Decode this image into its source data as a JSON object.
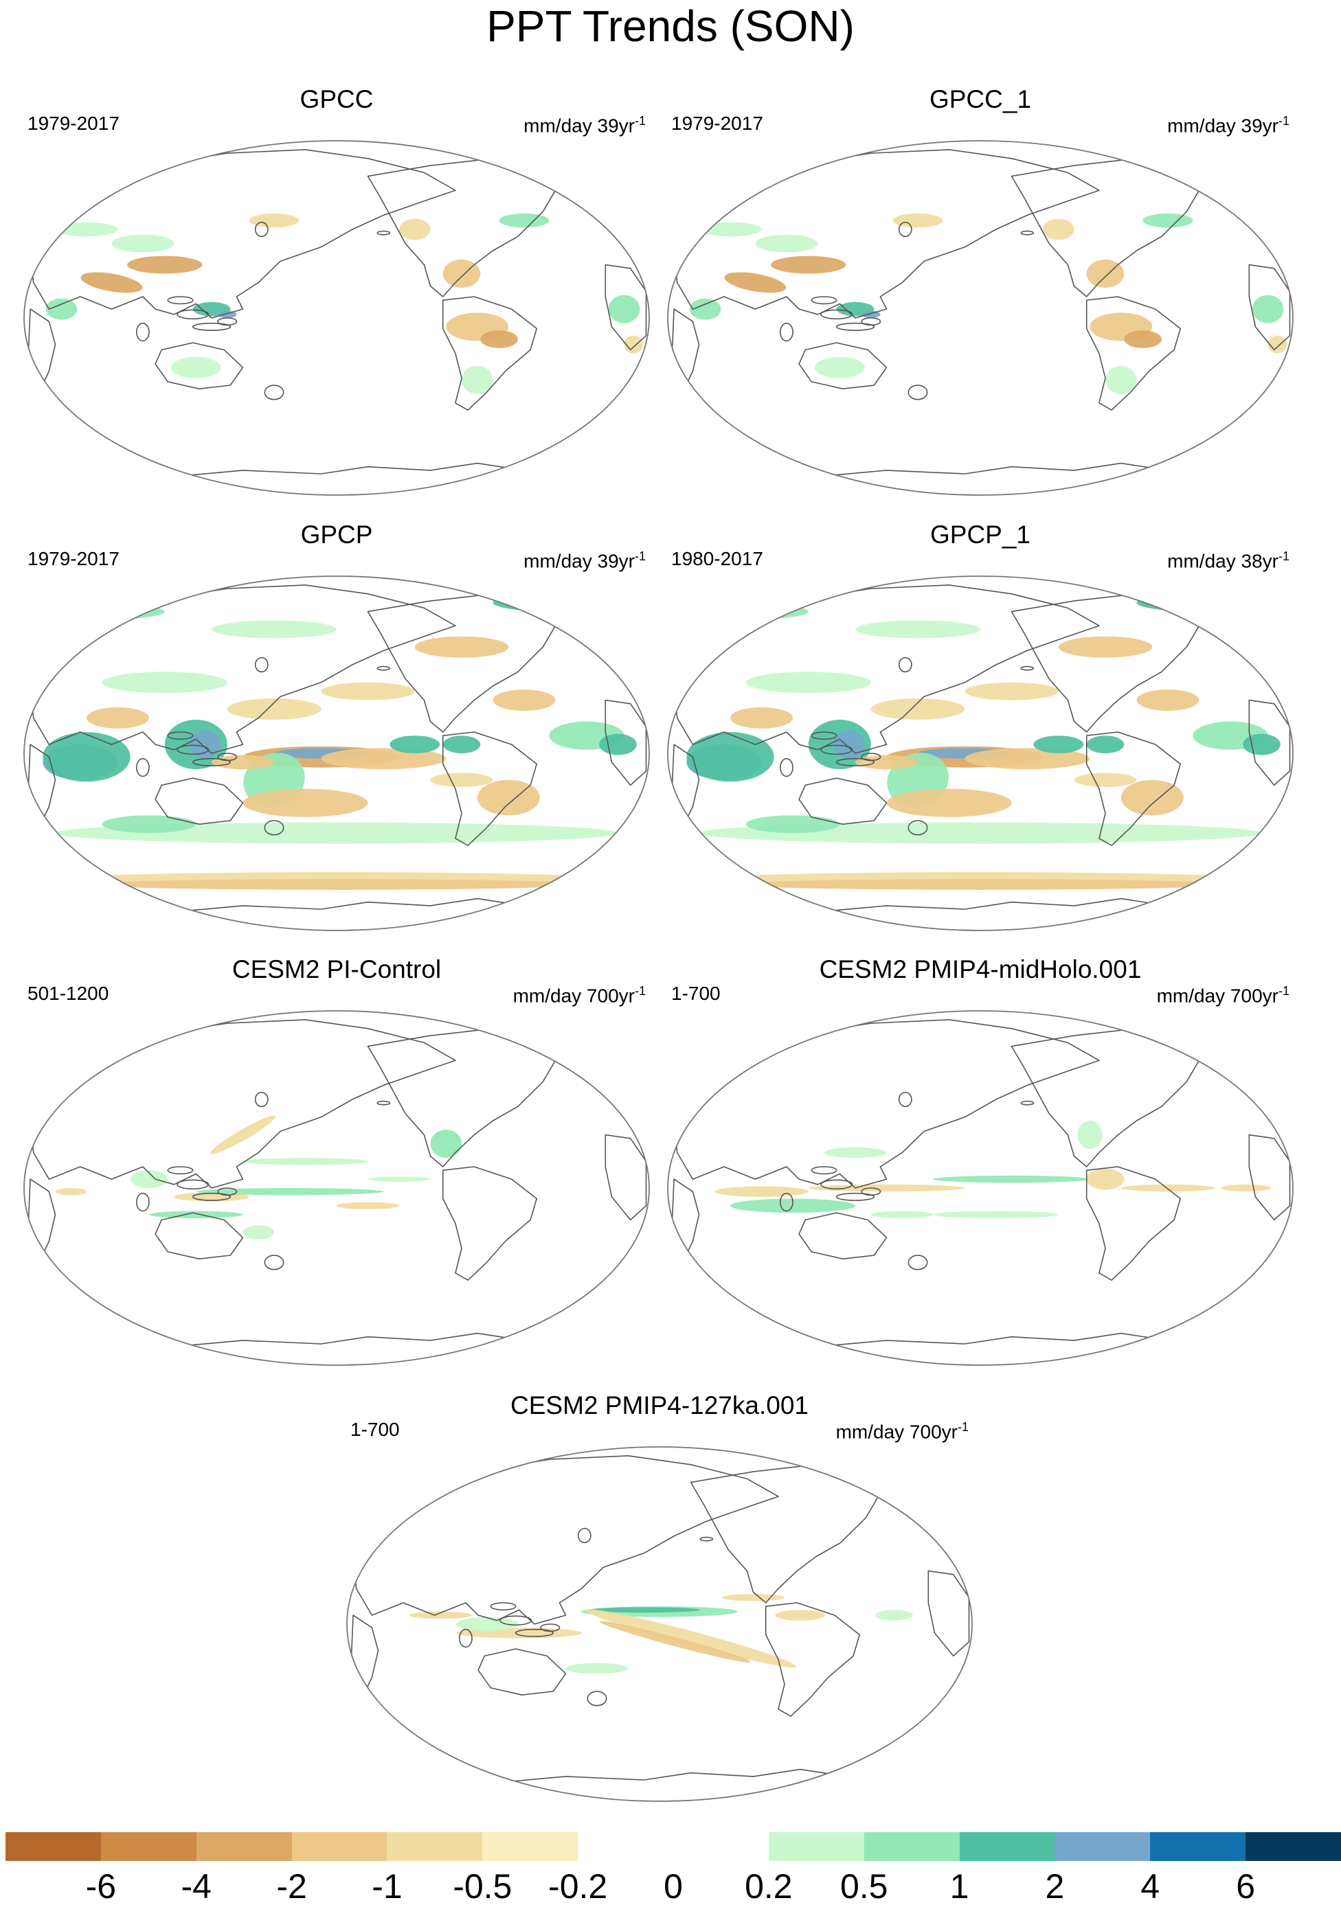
{
  "title": "PPT Trends (SON)",
  "panels": [
    {
      "id": "gpcc",
      "title": "GPCC",
      "period": "1979-2017",
      "units": "mm/day 39yr",
      "units_exp": "-1",
      "coverage": "land",
      "anomaly_strength": 0.5
    },
    {
      "id": "gpcc1",
      "title": "GPCC_1",
      "period": "1979-2017",
      "units": "mm/day 39yr",
      "units_exp": "-1",
      "coverage": "land",
      "anomaly_strength": 0.5
    },
    {
      "id": "gpcp",
      "title": "GPCP",
      "period": "1979-2017",
      "units": "mm/day 39yr",
      "units_exp": "-1",
      "coverage": "global",
      "anomaly_strength": 1.0
    },
    {
      "id": "gpcp1",
      "title": "GPCP_1",
      "period": "1980-2017",
      "units": "mm/day 38yr",
      "units_exp": "-1",
      "coverage": "global",
      "anomaly_strength": 1.0
    },
    {
      "id": "pictl",
      "title": "CESM2 PI-Control",
      "period": "501-1200",
      "units": "mm/day 700yr",
      "units_exp": "-1",
      "coverage": "global",
      "anomaly_strength": 0.25
    },
    {
      "id": "midholo",
      "title": "CESM2 PMIP4-midHolo.001",
      "period": "1-700",
      "units": "mm/day 700yr",
      "units_exp": "-1",
      "coverage": "global",
      "anomaly_strength": 0.25
    },
    {
      "id": "lig127",
      "title": "CESM2 PMIP4-127ka.001",
      "period": "1-700",
      "units": "mm/day 700yr",
      "units_exp": "-1",
      "coverage": "global",
      "anomaly_strength": 0.3
    }
  ],
  "colorbar": {
    "levels": [
      "-6",
      "-4",
      "-2",
      "-1",
      "-0.5",
      "-0.2",
      "0",
      "0.2",
      "0.5",
      "1",
      "2",
      "4",
      "6"
    ],
    "colors": [
      "#b5692c",
      "#cc8a45",
      "#dca865",
      "#edc98a",
      "#f1dc9f",
      "#f8eec0",
      "#ffffff",
      "#ffffff",
      "#c8f7cc",
      "#93e8b4",
      "#4fc0a0",
      "#74a7cb",
      "#1471ad",
      "#053a5c"
    ]
  }
}
